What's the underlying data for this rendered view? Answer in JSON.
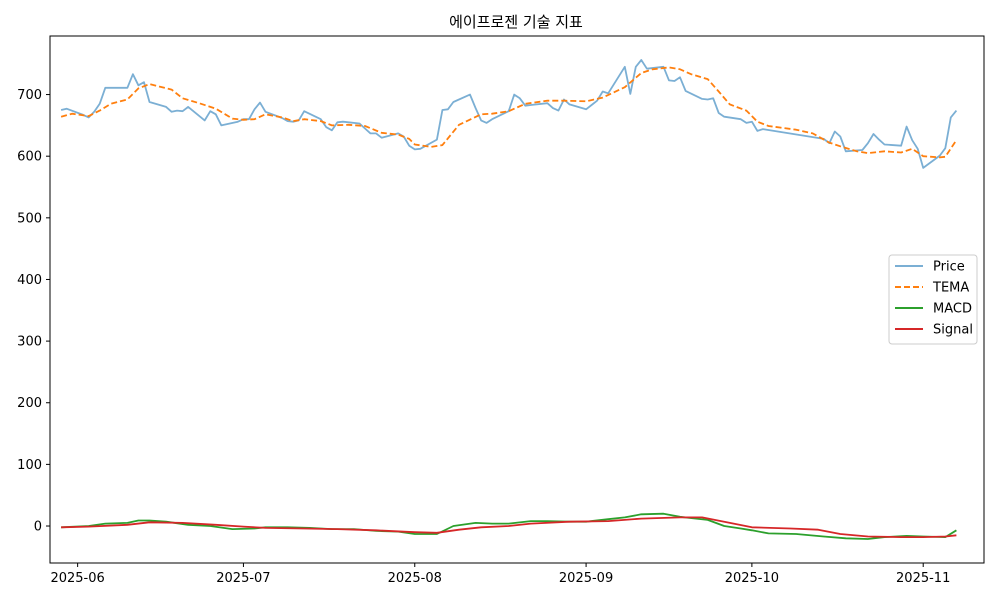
{
  "chart_data": {
    "type": "line",
    "title": "에이프로젠 기술 지표",
    "xlabel": "",
    "ylabel": "",
    "xlim": [
      "2025-05-27",
      "2025-11-12"
    ],
    "ylim": [
      -60,
      795
    ],
    "x_ticks": [
      "2025-06-01",
      "2025-07-01",
      "2025-08-01",
      "2025-09-01",
      "2025-10-01",
      "2025-11-01"
    ],
    "x_tick_labels": [
      "2025-06",
      "2025-07",
      "2025-08",
      "2025-09",
      "2025-10",
      "2025-11"
    ],
    "y_ticks": [
      0,
      100,
      200,
      300,
      400,
      500,
      600,
      700
    ],
    "y_tick_labels": [
      "0",
      "100",
      "200",
      "300",
      "400",
      "500",
      "600",
      "700"
    ],
    "grid": false,
    "legend_position": "right",
    "series": [
      {
        "name": "Price",
        "color": "#7bafd4",
        "style": "solid",
        "points": [
          [
            "2025-05-29",
            675
          ],
          [
            "2025-05-30",
            677
          ],
          [
            "2025-06-02",
            667
          ],
          [
            "2025-06-03",
            663
          ],
          [
            "2025-06-04",
            672
          ],
          [
            "2025-06-05",
            685
          ],
          [
            "2025-06-06",
            711
          ],
          [
            "2025-06-09",
            711
          ],
          [
            "2025-06-10",
            711
          ],
          [
            "2025-06-11",
            733
          ],
          [
            "2025-06-12",
            715
          ],
          [
            "2025-06-13",
            720
          ],
          [
            "2025-06-14",
            688
          ],
          [
            "2025-06-17",
            680
          ],
          [
            "2025-06-18",
            672
          ],
          [
            "2025-06-19",
            674
          ],
          [
            "2025-06-20",
            673
          ],
          [
            "2025-06-21",
            680
          ],
          [
            "2025-06-24",
            658
          ],
          [
            "2025-06-25",
            673
          ],
          [
            "2025-06-26",
            668
          ],
          [
            "2025-06-27",
            650
          ],
          [
            "2025-06-30",
            656
          ],
          [
            "2025-07-01",
            660
          ],
          [
            "2025-07-02",
            660
          ],
          [
            "2025-07-03",
            676
          ],
          [
            "2025-07-04",
            687
          ],
          [
            "2025-07-05",
            672
          ],
          [
            "2025-07-08",
            662
          ],
          [
            "2025-07-09",
            657
          ],
          [
            "2025-07-10",
            656
          ],
          [
            "2025-07-11",
            658
          ],
          [
            "2025-07-12",
            673
          ],
          [
            "2025-07-15",
            660
          ],
          [
            "2025-07-16",
            647
          ],
          [
            "2025-07-17",
            642
          ],
          [
            "2025-07-18",
            655
          ],
          [
            "2025-07-19",
            656
          ],
          [
            "2025-07-22",
            653
          ],
          [
            "2025-07-23",
            645
          ],
          [
            "2025-07-24",
            637
          ],
          [
            "2025-07-25",
            637
          ],
          [
            "2025-07-26",
            630
          ],
          [
            "2025-07-29",
            637
          ],
          [
            "2025-07-30",
            632
          ],
          [
            "2025-07-31",
            617
          ],
          [
            "2025-08-01",
            611
          ],
          [
            "2025-08-02",
            612
          ],
          [
            "2025-08-05",
            627
          ],
          [
            "2025-08-06",
            675
          ],
          [
            "2025-08-07",
            676
          ],
          [
            "2025-08-08",
            688
          ],
          [
            "2025-08-11",
            700
          ],
          [
            "2025-08-12",
            678
          ],
          [
            "2025-08-13",
            658
          ],
          [
            "2025-08-14",
            654
          ],
          [
            "2025-08-15",
            660
          ],
          [
            "2025-08-18",
            673
          ],
          [
            "2025-08-19",
            700
          ],
          [
            "2025-08-20",
            694
          ],
          [
            "2025-08-21",
            682
          ],
          [
            "2025-08-22",
            683
          ],
          [
            "2025-08-25",
            686
          ],
          [
            "2025-08-26",
            678
          ],
          [
            "2025-08-27",
            674
          ],
          [
            "2025-08-28",
            692
          ],
          [
            "2025-08-29",
            684
          ],
          [
            "2025-09-01",
            676
          ],
          [
            "2025-09-02",
            683
          ],
          [
            "2025-09-03",
            690
          ],
          [
            "2025-09-04",
            705
          ],
          [
            "2025-09-05",
            702
          ],
          [
            "2025-09-08",
            745
          ],
          [
            "2025-09-09",
            701
          ],
          [
            "2025-09-10",
            745
          ],
          [
            "2025-09-11",
            756
          ],
          [
            "2025-09-12",
            742
          ],
          [
            "2025-09-15",
            745
          ],
          [
            "2025-09-16",
            723
          ],
          [
            "2025-09-17",
            722
          ],
          [
            "2025-09-18",
            728
          ],
          [
            "2025-09-19",
            706
          ],
          [
            "2025-09-22",
            693
          ],
          [
            "2025-09-23",
            692
          ],
          [
            "2025-09-24",
            694
          ],
          [
            "2025-09-25",
            670
          ],
          [
            "2025-09-26",
            664
          ],
          [
            "2025-09-29",
            660
          ],
          [
            "2025-09-30",
            654
          ],
          [
            "2025-10-01",
            656
          ],
          [
            "2025-10-02",
            641
          ],
          [
            "2025-10-03",
            644
          ],
          [
            "2025-10-14",
            628
          ],
          [
            "2025-10-15",
            621
          ],
          [
            "2025-10-16",
            640
          ],
          [
            "2025-10-17",
            632
          ],
          [
            "2025-10-18",
            608
          ],
          [
            "2025-10-21",
            610
          ],
          [
            "2025-10-22",
            621
          ],
          [
            "2025-10-23",
            636
          ],
          [
            "2025-10-24",
            627
          ],
          [
            "2025-10-25",
            619
          ],
          [
            "2025-10-28",
            617
          ],
          [
            "2025-10-29",
            648
          ],
          [
            "2025-10-30",
            626
          ],
          [
            "2025-10-31",
            612
          ],
          [
            "2025-11-01",
            581
          ],
          [
            "2025-11-04",
            601
          ],
          [
            "2025-11-05",
            613
          ],
          [
            "2025-11-06",
            663
          ],
          [
            "2025-11-07",
            674
          ]
        ]
      },
      {
        "name": "TEMA",
        "color": "#ff7f0e",
        "style": "dashed",
        "points": [
          [
            "2025-05-29",
            664
          ],
          [
            "2025-05-31",
            669
          ],
          [
            "2025-06-03",
            665
          ],
          [
            "2025-06-05",
            674
          ],
          [
            "2025-06-07",
            685
          ],
          [
            "2025-06-10",
            692
          ],
          [
            "2025-06-12",
            710
          ],
          [
            "2025-06-14",
            717
          ],
          [
            "2025-06-18",
            708
          ],
          [
            "2025-06-20",
            694
          ],
          [
            "2025-06-23",
            686
          ],
          [
            "2025-06-26",
            677
          ],
          [
            "2025-06-29",
            661
          ],
          [
            "2025-07-01",
            659
          ],
          [
            "2025-07-03",
            660
          ],
          [
            "2025-07-05",
            668
          ],
          [
            "2025-07-08",
            663
          ],
          [
            "2025-07-10",
            657
          ],
          [
            "2025-07-12",
            660
          ],
          [
            "2025-07-15",
            657
          ],
          [
            "2025-07-17",
            650
          ],
          [
            "2025-07-20",
            651
          ],
          [
            "2025-07-23",
            649
          ],
          [
            "2025-07-26",
            638
          ],
          [
            "2025-07-29",
            635
          ],
          [
            "2025-07-31",
            628
          ],
          [
            "2025-08-01",
            619
          ],
          [
            "2025-08-04",
            615
          ],
          [
            "2025-08-06",
            618
          ],
          [
            "2025-08-09",
            651
          ],
          [
            "2025-08-13",
            668
          ],
          [
            "2025-08-15",
            669
          ],
          [
            "2025-08-18",
            673
          ],
          [
            "2025-08-21",
            685
          ],
          [
            "2025-08-25",
            690
          ],
          [
            "2025-08-28",
            690
          ],
          [
            "2025-09-01",
            689
          ],
          [
            "2025-09-04",
            695
          ],
          [
            "2025-09-08",
            712
          ],
          [
            "2025-09-11",
            735
          ],
          [
            "2025-09-13",
            741
          ],
          [
            "2025-09-16",
            744
          ],
          [
            "2025-09-18",
            741
          ],
          [
            "2025-09-20",
            733
          ],
          [
            "2025-09-23",
            725
          ],
          [
            "2025-09-25",
            705
          ],
          [
            "2025-09-27",
            684
          ],
          [
            "2025-09-30",
            674
          ],
          [
            "2025-10-02",
            656
          ],
          [
            "2025-10-04",
            649
          ],
          [
            "2025-10-09",
            643
          ],
          [
            "2025-10-12",
            637
          ],
          [
            "2025-10-15",
            622
          ],
          [
            "2025-10-17",
            616
          ],
          [
            "2025-10-20",
            608
          ],
          [
            "2025-10-22",
            605
          ],
          [
            "2025-10-25",
            608
          ],
          [
            "2025-10-28",
            606
          ],
          [
            "2025-10-30",
            612
          ],
          [
            "2025-11-01",
            600
          ],
          [
            "2025-11-04",
            598
          ],
          [
            "2025-11-05",
            599
          ],
          [
            "2025-11-07",
            626
          ]
        ]
      },
      {
        "name": "MACD",
        "color": "#2ca02c",
        "style": "solid",
        "points": [
          [
            "2025-05-29",
            -2
          ],
          [
            "2025-06-03",
            0
          ],
          [
            "2025-06-06",
            4
          ],
          [
            "2025-06-10",
            5
          ],
          [
            "2025-06-12",
            9
          ],
          [
            "2025-06-14",
            9
          ],
          [
            "2025-06-17",
            7
          ],
          [
            "2025-06-21",
            2
          ],
          [
            "2025-06-25",
            0
          ],
          [
            "2025-06-29",
            -5
          ],
          [
            "2025-07-03",
            -4
          ],
          [
            "2025-07-05",
            -2
          ],
          [
            "2025-07-09",
            -2
          ],
          [
            "2025-07-13",
            -3
          ],
          [
            "2025-07-17",
            -5
          ],
          [
            "2025-07-21",
            -5
          ],
          [
            "2025-07-25",
            -8
          ],
          [
            "2025-07-29",
            -9
          ],
          [
            "2025-08-01",
            -13
          ],
          [
            "2025-08-05",
            -13
          ],
          [
            "2025-08-08",
            0
          ],
          [
            "2025-08-12",
            5
          ],
          [
            "2025-08-15",
            4
          ],
          [
            "2025-08-18",
            4
          ],
          [
            "2025-08-22",
            8
          ],
          [
            "2025-08-25",
            8
          ],
          [
            "2025-08-29",
            7
          ],
          [
            "2025-09-01",
            7
          ],
          [
            "2025-09-05",
            11
          ],
          [
            "2025-09-08",
            14
          ],
          [
            "2025-09-11",
            19
          ],
          [
            "2025-09-15",
            20
          ],
          [
            "2025-09-18",
            15
          ],
          [
            "2025-09-23",
            10
          ],
          [
            "2025-09-26",
            0
          ],
          [
            "2025-09-29",
            -4
          ],
          [
            "2025-10-01",
            -7
          ],
          [
            "2025-10-04",
            -12
          ],
          [
            "2025-10-09",
            -13
          ],
          [
            "2025-10-14",
            -17
          ],
          [
            "2025-10-18",
            -20
          ],
          [
            "2025-10-22",
            -21
          ],
          [
            "2025-10-25",
            -18
          ],
          [
            "2025-10-29",
            -16
          ],
          [
            "2025-11-01",
            -17
          ],
          [
            "2025-11-05",
            -18
          ],
          [
            "2025-11-07",
            -7
          ]
        ]
      },
      {
        "name": "Signal",
        "color": "#d62728",
        "style": "solid",
        "points": [
          [
            "2025-05-29",
            -2
          ],
          [
            "2025-06-03",
            -1
          ],
          [
            "2025-06-10",
            2
          ],
          [
            "2025-06-14",
            6
          ],
          [
            "2025-06-20",
            5
          ],
          [
            "2025-06-26",
            2
          ],
          [
            "2025-07-01",
            -1
          ],
          [
            "2025-07-05",
            -3
          ],
          [
            "2025-07-12",
            -4
          ],
          [
            "2025-07-18",
            -5
          ],
          [
            "2025-07-25",
            -7
          ],
          [
            "2025-08-01",
            -10
          ],
          [
            "2025-08-05",
            -11
          ],
          [
            "2025-08-09",
            -6
          ],
          [
            "2025-08-13",
            -2
          ],
          [
            "2025-08-18",
            0
          ],
          [
            "2025-08-22",
            4
          ],
          [
            "2025-08-29",
            7
          ],
          [
            "2025-09-05",
            8
          ],
          [
            "2025-09-11",
            12
          ],
          [
            "2025-09-18",
            14
          ],
          [
            "2025-09-22",
            14
          ],
          [
            "2025-09-26",
            7
          ],
          [
            "2025-10-01",
            -2
          ],
          [
            "2025-10-08",
            -4
          ],
          [
            "2025-10-13",
            -6
          ],
          [
            "2025-10-17",
            -13
          ],
          [
            "2025-10-22",
            -17
          ],
          [
            "2025-10-28",
            -18
          ],
          [
            "2025-11-01",
            -18
          ],
          [
            "2025-11-05",
            -17
          ],
          [
            "2025-11-07",
            -15
          ]
        ]
      }
    ]
  }
}
